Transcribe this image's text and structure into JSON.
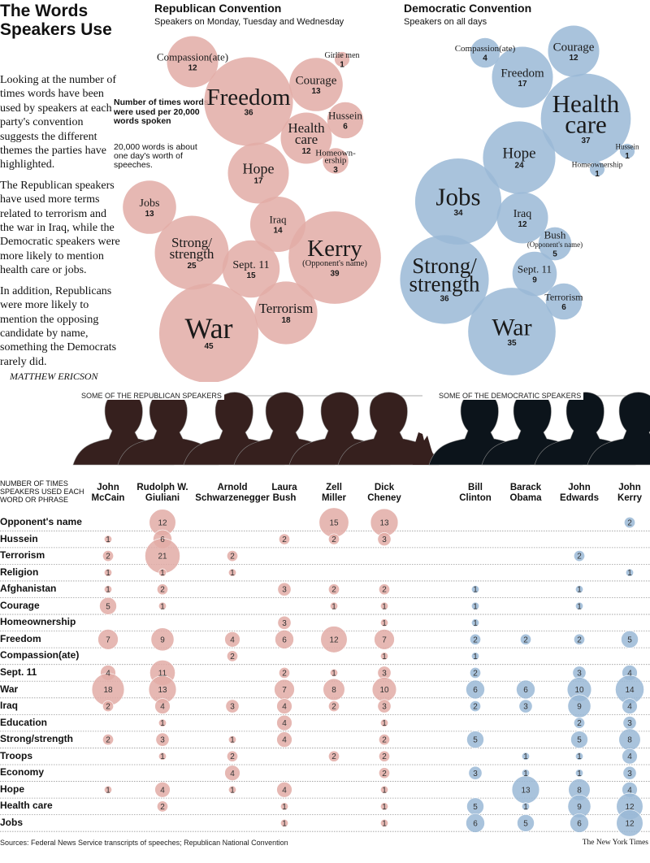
{
  "title": "The Words Speakers Use",
  "intro": [
    "Looking at the number of times words have been used by speakers at each party's convention suggests the different themes the parties have highlighted.",
    "The Republican speakers have used more terms related to terrorism and the war in Iraq, while the Democratic speakers were more likely to mention health care or jobs.",
    "In addition, Republicans were more likely to mention the opposing candidate by name, something the Democrats rarely did."
  ],
  "byline": "MATTHEW ERICSON",
  "note": {
    "unit": "Number of times words were used per 20,000 words spoken",
    "detail": "20,000 words is about one day's worth of speeches."
  },
  "colors": {
    "republican": "#e2aca6",
    "democratic": "#9ab8d6",
    "rep_silhouette": "#36201e",
    "dem_silhouette": "#0c141b"
  },
  "chart_data": [
    {
      "type": "bubble",
      "title": "Republican Convention",
      "subtitle": "Speakers on Monday, Tuesday and Wednesday",
      "bubbles": [
        {
          "label": [
            "Compassion(ate)"
          ],
          "value": 12
        },
        {
          "label": [
            "Girlie men"
          ],
          "value": 1
        },
        {
          "label": [
            "Freedom"
          ],
          "value": 36
        },
        {
          "label": [
            "Courage"
          ],
          "value": 13
        },
        {
          "label": [
            "Hussein"
          ],
          "value": 6
        },
        {
          "label": [
            "Health",
            "care"
          ],
          "value": 12
        },
        {
          "label": [
            "Homeown-",
            "ership"
          ],
          "value": 3
        },
        {
          "label": [
            "Hope"
          ],
          "value": 17
        },
        {
          "label": [
            "Jobs"
          ],
          "value": 13
        },
        {
          "label": [
            "Strong/",
            "strength"
          ],
          "value": 25
        },
        {
          "label": [
            "Iraq"
          ],
          "value": 14
        },
        {
          "label": [
            "Sept. 11"
          ],
          "value": 15
        },
        {
          "label": [
            "Kerry",
            "(Opponent's name)"
          ],
          "value": 39
        },
        {
          "label": [
            "Terrorism"
          ],
          "value": 18
        },
        {
          "label": [
            "War"
          ],
          "value": 45
        }
      ]
    },
    {
      "type": "bubble",
      "title": "Democratic Convention",
      "subtitle": "Speakers on all days",
      "bubbles": [
        {
          "label": [
            "Compassion(ate)"
          ],
          "value": 4
        },
        {
          "label": [
            "Freedom"
          ],
          "value": 17
        },
        {
          "label": [
            "Courage"
          ],
          "value": 12
        },
        {
          "label": [
            "Health",
            "care"
          ],
          "value": 37
        },
        {
          "label": [
            "Hussein"
          ],
          "value": 1
        },
        {
          "label": [
            "Homeownership"
          ],
          "value": 1
        },
        {
          "label": [
            "Hope"
          ],
          "value": 24
        },
        {
          "label": [
            "Jobs"
          ],
          "value": 34
        },
        {
          "label": [
            "Iraq"
          ],
          "value": 12
        },
        {
          "label": [
            "Bush",
            "(Opponent's name)"
          ],
          "value": 5
        },
        {
          "label": [
            "Sept. 11"
          ],
          "value": 9
        },
        {
          "label": [
            "Strong/",
            "strength"
          ],
          "value": 36
        },
        {
          "label": [
            "Terrorism"
          ],
          "value": 6
        },
        {
          "label": [
            "War"
          ],
          "value": 35
        }
      ]
    },
    {
      "type": "table",
      "header": "NUMBER OF TIMES SPEAKERS USED EACH WORD OR PHRASE",
      "speakers": [
        {
          "first": "John",
          "last": "McCain",
          "party": "republican"
        },
        {
          "first": "Rudolph W.",
          "last": "Giuliani",
          "party": "republican"
        },
        {
          "first": "Arnold",
          "last": "Schwarzenegger",
          "party": "republican"
        },
        {
          "first": "Laura",
          "last": "Bush",
          "party": "republican"
        },
        {
          "first": "Zell",
          "last": "Miller",
          "party": "republican"
        },
        {
          "first": "Dick",
          "last": "Cheney",
          "party": "republican"
        },
        {
          "first": "Bill",
          "last": "Clinton",
          "party": "democratic"
        },
        {
          "first": "Barack",
          "last": "Obama",
          "party": "democratic"
        },
        {
          "first": "John",
          "last": "Edwards",
          "party": "democratic"
        },
        {
          "first": "John",
          "last": "Kerry",
          "party": "democratic"
        }
      ],
      "rows": [
        {
          "word": "Opponent's name",
          "values": [
            null,
            12,
            null,
            null,
            15,
            13,
            null,
            null,
            null,
            2
          ]
        },
        {
          "word": "Hussein",
          "values": [
            1,
            6,
            null,
            2,
            2,
            3,
            null,
            null,
            null,
            null
          ]
        },
        {
          "word": "Terrorism",
          "values": [
            2,
            21,
            2,
            null,
            null,
            null,
            null,
            null,
            2,
            null
          ]
        },
        {
          "word": "Religion",
          "values": [
            1,
            1,
            1,
            null,
            null,
            null,
            null,
            null,
            null,
            1
          ]
        },
        {
          "word": "Afghanistan",
          "values": [
            1,
            2,
            null,
            3,
            2,
            2,
            1,
            null,
            1,
            null
          ]
        },
        {
          "word": "Courage",
          "values": [
            5,
            1,
            null,
            null,
            1,
            1,
            1,
            null,
            1,
            null
          ]
        },
        {
          "word": "Homeownership",
          "values": [
            null,
            null,
            null,
            3,
            null,
            1,
            1,
            null,
            null,
            null
          ]
        },
        {
          "word": "Freedom",
          "values": [
            7,
            9,
            4,
            6,
            12,
            7,
            2,
            2,
            2,
            5
          ]
        },
        {
          "word": "Compassion(ate)",
          "values": [
            null,
            null,
            2,
            null,
            null,
            1,
            1,
            null,
            null,
            null
          ]
        },
        {
          "word": "Sept. 11",
          "values": [
            4,
            11,
            null,
            2,
            1,
            3,
            2,
            null,
            3,
            4
          ]
        },
        {
          "word": "War",
          "values": [
            18,
            13,
            null,
            7,
            8,
            10,
            6,
            6,
            10,
            14
          ]
        },
        {
          "word": "Iraq",
          "values": [
            2,
            4,
            3,
            4,
            2,
            3,
            2,
            3,
            9,
            4
          ]
        },
        {
          "word": "Education",
          "values": [
            null,
            1,
            null,
            4,
            null,
            1,
            null,
            null,
            2,
            3
          ]
        },
        {
          "word": "Strong/strength",
          "values": [
            2,
            3,
            1,
            4,
            null,
            2,
            5,
            null,
            5,
            8
          ]
        },
        {
          "word": "Troops",
          "values": [
            null,
            1,
            2,
            null,
            2,
            2,
            null,
            1,
            1,
            4
          ]
        },
        {
          "word": "Economy",
          "values": [
            null,
            null,
            4,
            null,
            null,
            2,
            3,
            1,
            1,
            3
          ]
        },
        {
          "word": "Hope",
          "values": [
            1,
            4,
            1,
            4,
            null,
            1,
            null,
            13,
            8,
            4
          ]
        },
        {
          "word": "Health care",
          "values": [
            null,
            2,
            null,
            1,
            null,
            1,
            5,
            1,
            9,
            12
          ]
        },
        {
          "word": "Jobs",
          "values": [
            null,
            null,
            null,
            1,
            null,
            1,
            6,
            5,
            6,
            12
          ]
        }
      ]
    }
  ],
  "sections": {
    "republican": "SOME OF THE REPUBLICAN SPEAKERS",
    "democratic": "SOME OF THE DEMOCRATIC SPEAKERS"
  },
  "sources": "Sources: Federal News Service transcripts of speeches; Republican National Convention",
  "credit": "The New York Times"
}
